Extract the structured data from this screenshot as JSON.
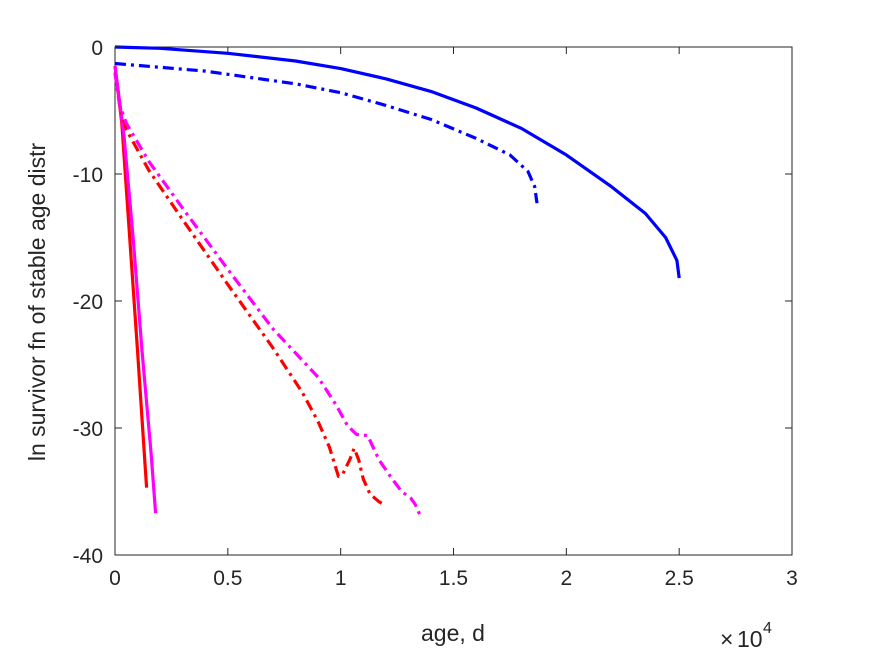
{
  "chart_data": {
    "type": "line",
    "title": "",
    "xlabel": "age, d",
    "ylabel": "ln survivor fn of stable age distr",
    "x_multiplier_base": "10",
    "x_multiplier_exp": "4",
    "x_multiplier_sign": "×",
    "xlim": [
      0,
      30000
    ],
    "ylim": [
      -40,
      0
    ],
    "xticks": [
      0,
      5000,
      10000,
      15000,
      20000,
      25000,
      30000
    ],
    "xtick_labels": [
      "0",
      "0.5",
      "1",
      "1.5",
      "2",
      "2.5",
      "3"
    ],
    "yticks": [
      0,
      -10,
      -20,
      -30,
      -40
    ],
    "ytick_labels": [
      "0",
      "-10",
      "-20",
      "-30",
      "-40"
    ],
    "grid": false,
    "box": true,
    "series": [
      {
        "color": "#0000ff",
        "style": "solid",
        "points": [
          [
            0,
            0
          ],
          [
            2000,
            -0.1
          ],
          [
            5000,
            -0.5
          ],
          [
            8000,
            -1.1
          ],
          [
            10000,
            -1.7
          ],
          [
            12000,
            -2.5
          ],
          [
            14000,
            -3.5
          ],
          [
            16000,
            -4.8
          ],
          [
            18000,
            -6.4
          ],
          [
            20000,
            -8.5
          ],
          [
            22000,
            -11.0
          ],
          [
            23500,
            -13.1
          ],
          [
            24400,
            -15.0
          ],
          [
            24900,
            -16.8
          ],
          [
            25000,
            -18.2
          ]
        ]
      },
      {
        "color": "#0000ff",
        "style": "dashdot",
        "points": [
          [
            0,
            -1.3
          ],
          [
            2000,
            -1.6
          ],
          [
            4000,
            -1.9
          ],
          [
            6000,
            -2.4
          ],
          [
            8000,
            -2.9
          ],
          [
            10000,
            -3.6
          ],
          [
            12000,
            -4.6
          ],
          [
            14000,
            -5.7
          ],
          [
            16000,
            -7.2
          ],
          [
            17500,
            -8.5
          ],
          [
            18300,
            -9.8
          ],
          [
            18600,
            -11.0
          ],
          [
            18700,
            -12.3
          ]
        ]
      },
      {
        "color": "#ff0000",
        "style": "solid",
        "points": [
          [
            0,
            -1.5
          ],
          [
            300,
            -6
          ],
          [
            650,
            -15
          ],
          [
            1000,
            -24
          ],
          [
            1300,
            -32
          ],
          [
            1400,
            -34.7
          ]
        ]
      },
      {
        "color": "#ff00ff",
        "style": "solid",
        "points": [
          [
            0,
            -1.5
          ],
          [
            400,
            -7
          ],
          [
            800,
            -15
          ],
          [
            1200,
            -24
          ],
          [
            1600,
            -32
          ],
          [
            1800,
            -36.7
          ]
        ]
      },
      {
        "color": "#ff0000",
        "style": "dashdot",
        "points": [
          [
            0,
            -2.0
          ],
          [
            200,
            -4.5
          ],
          [
            500,
            -6.5
          ],
          [
            1500,
            -9.7
          ],
          [
            3000,
            -13.6
          ],
          [
            5000,
            -18.7
          ],
          [
            7000,
            -23.7
          ],
          [
            8300,
            -27.2
          ],
          [
            9000,
            -29.5
          ],
          [
            9500,
            -31.5
          ],
          [
            9900,
            -33.8
          ],
          [
            10100,
            -33.6
          ],
          [
            10400,
            -32.5
          ],
          [
            10600,
            -31.6
          ],
          [
            10800,
            -32.5
          ],
          [
            11000,
            -34.0
          ],
          [
            11300,
            -35.2
          ],
          [
            11700,
            -35.8
          ],
          [
            11900,
            -36.0
          ]
        ]
      },
      {
        "color": "#ff00ff",
        "style": "dashdot",
        "points": [
          [
            0,
            -2.0
          ],
          [
            200,
            -4.5
          ],
          [
            500,
            -6.0
          ],
          [
            1500,
            -9.0
          ],
          [
            3000,
            -12.7
          ],
          [
            5000,
            -17.5
          ],
          [
            7000,
            -22.2
          ],
          [
            9000,
            -26.0
          ],
          [
            9800,
            -28.2
          ],
          [
            10300,
            -29.8
          ],
          [
            10700,
            -30.5
          ],
          [
            11200,
            -30.6
          ],
          [
            11700,
            -32.5
          ],
          [
            12200,
            -33.8
          ],
          [
            12700,
            -35.0
          ],
          [
            13100,
            -35.5
          ],
          [
            13300,
            -36.0
          ],
          [
            13500,
            -36.8
          ],
          [
            13700,
            -36.9
          ]
        ]
      }
    ]
  }
}
